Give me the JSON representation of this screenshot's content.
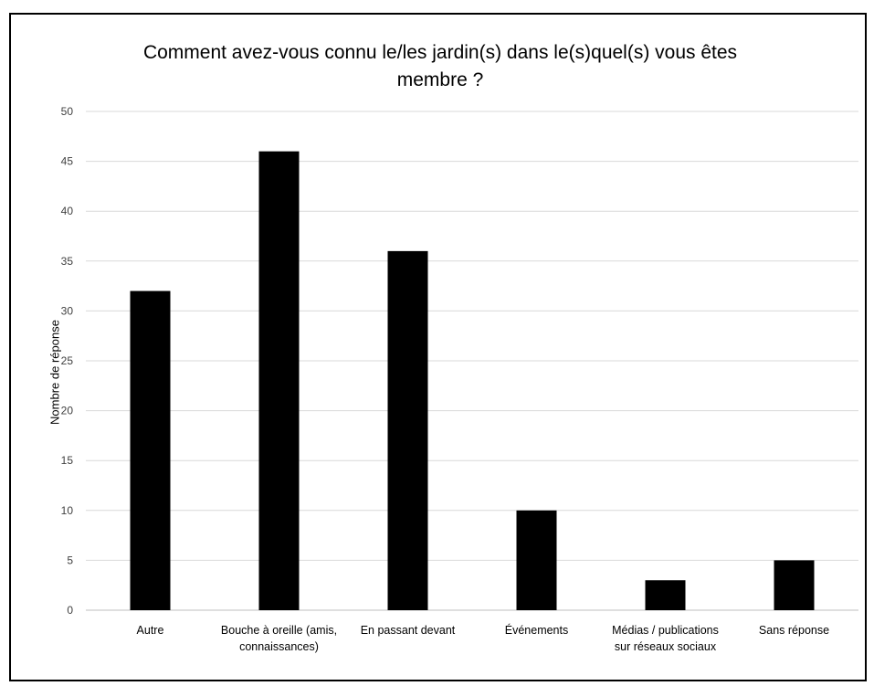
{
  "chart_data": {
    "type": "bar",
    "title": "Comment avez-vous connu le/les jardin(s) dans le(s)quel(s) vous êtes membre ?",
    "xlabel": "",
    "ylabel": "Nombre de réponse",
    "ylim": [
      0,
      50
    ],
    "yticks": [
      0,
      5,
      10,
      15,
      20,
      25,
      30,
      35,
      40,
      45,
      50
    ],
    "grid": true,
    "legend": "none",
    "categories": [
      "Autre",
      "Bouche à oreille (amis, connaissances)",
      "En passant devant",
      "Événements",
      "Médias / publications sur réseaux sociaux",
      "Sans réponse"
    ],
    "values": [
      32,
      46,
      36,
      10,
      3,
      5
    ],
    "bar_color": "#000000",
    "grid_color": "#d9d9d9",
    "axis_color": "#bfbfbf"
  }
}
